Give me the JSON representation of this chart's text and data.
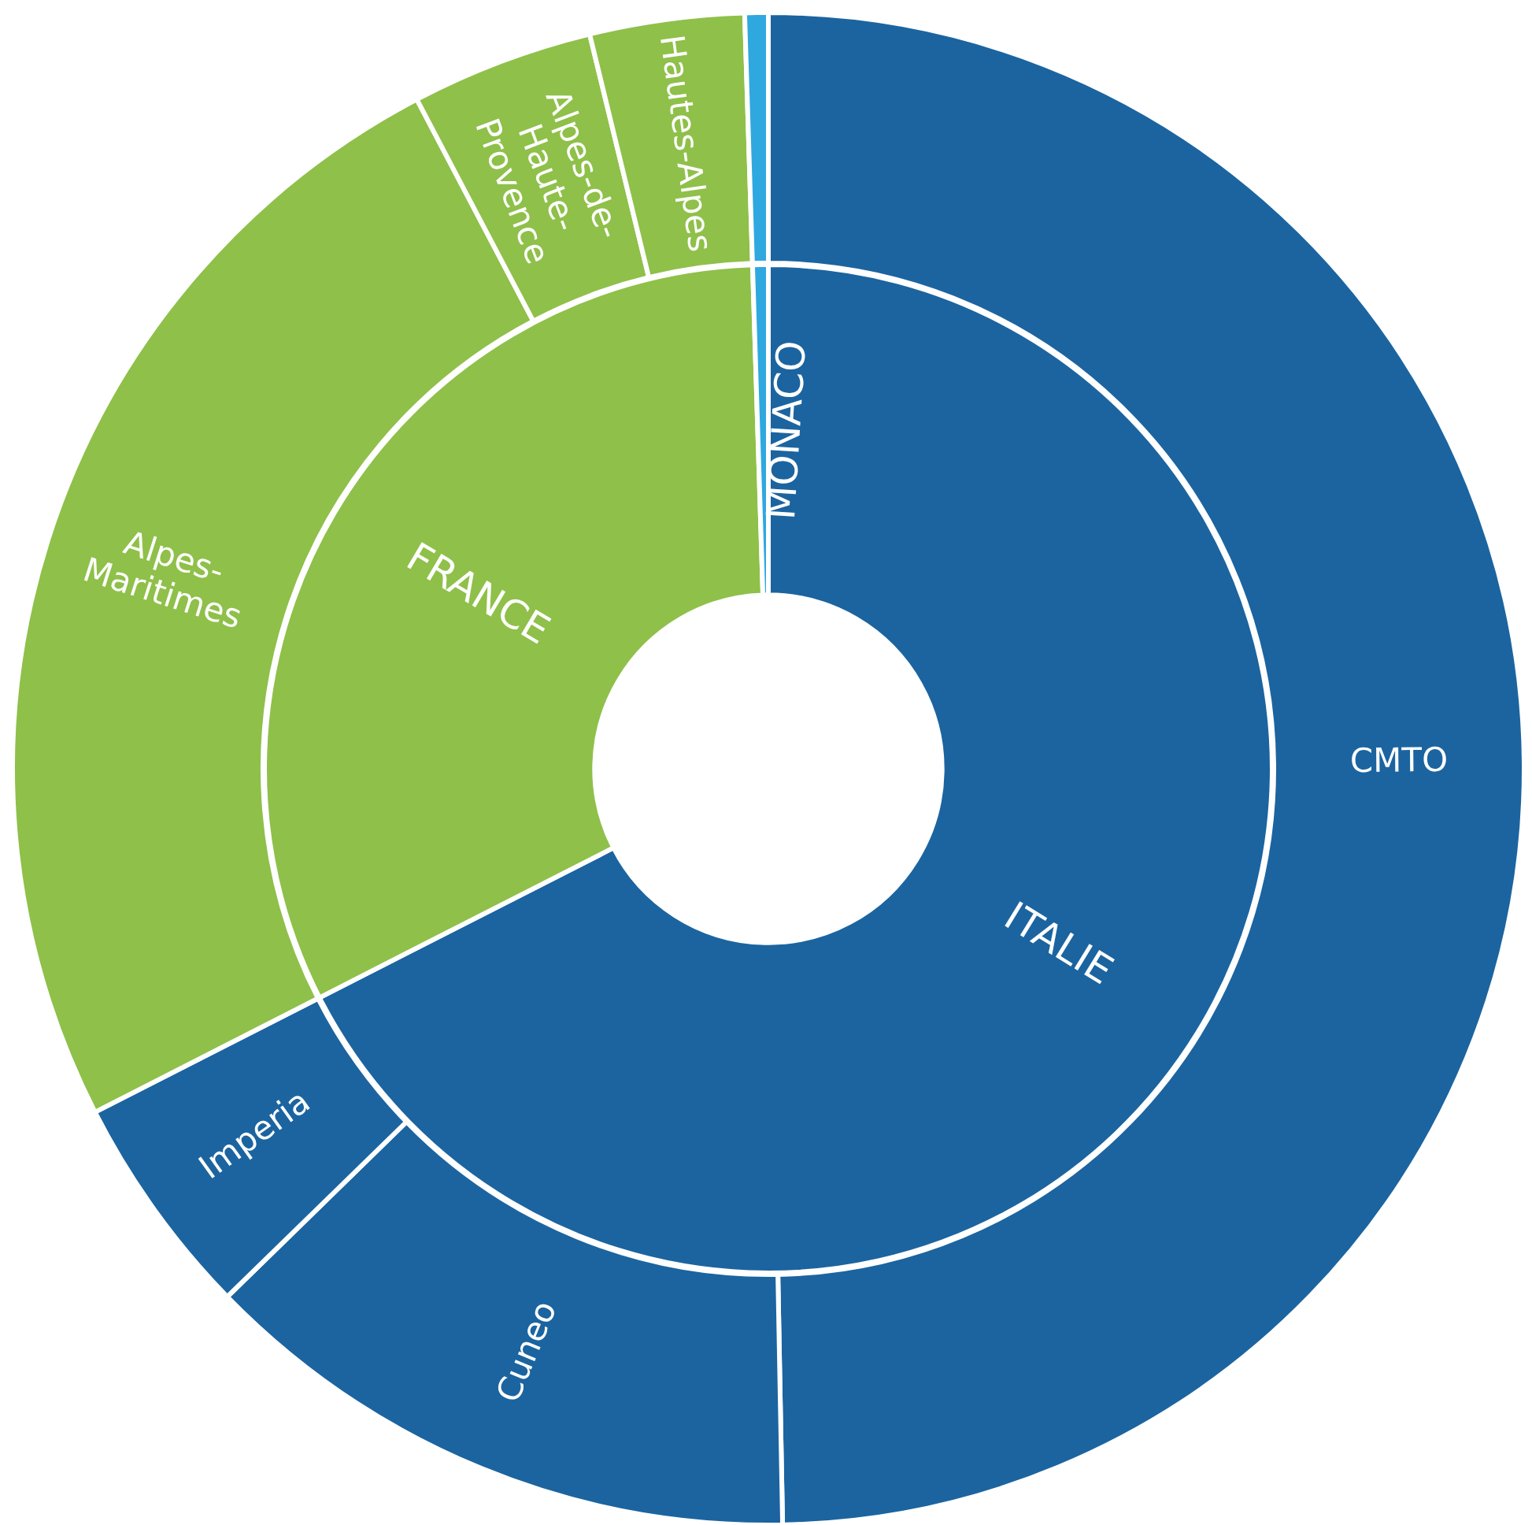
{
  "chart_data": [
    {
      "type": "donut",
      "categories": [
        "ITALIE",
        "FRANCE",
        "MONACO"
      ],
      "values": [
        67.5,
        32,
        0.5
      ],
      "colors": [
        "#1b64a0",
        "#8fc04a",
        "#2fa8e0"
      ]
    },
    {
      "type": "donut",
      "categories": [
        "CMTO",
        "Cuneo",
        "Imperia",
        "Alpes-Maritimes",
        "Alpes-de-Haute-Provence",
        "Hautes-Alpes",
        null
      ],
      "values": [
        49.7,
        13,
        4.8,
        24.8,
        3.9,
        3.3,
        0.5
      ],
      "colors": [
        "#1b64a0",
        "#1b64a0",
        "#1b64a0",
        "#8fc04a",
        "#8fc04a",
        "#8fc04a",
        "#2fa8e0"
      ]
    }
  ]
}
